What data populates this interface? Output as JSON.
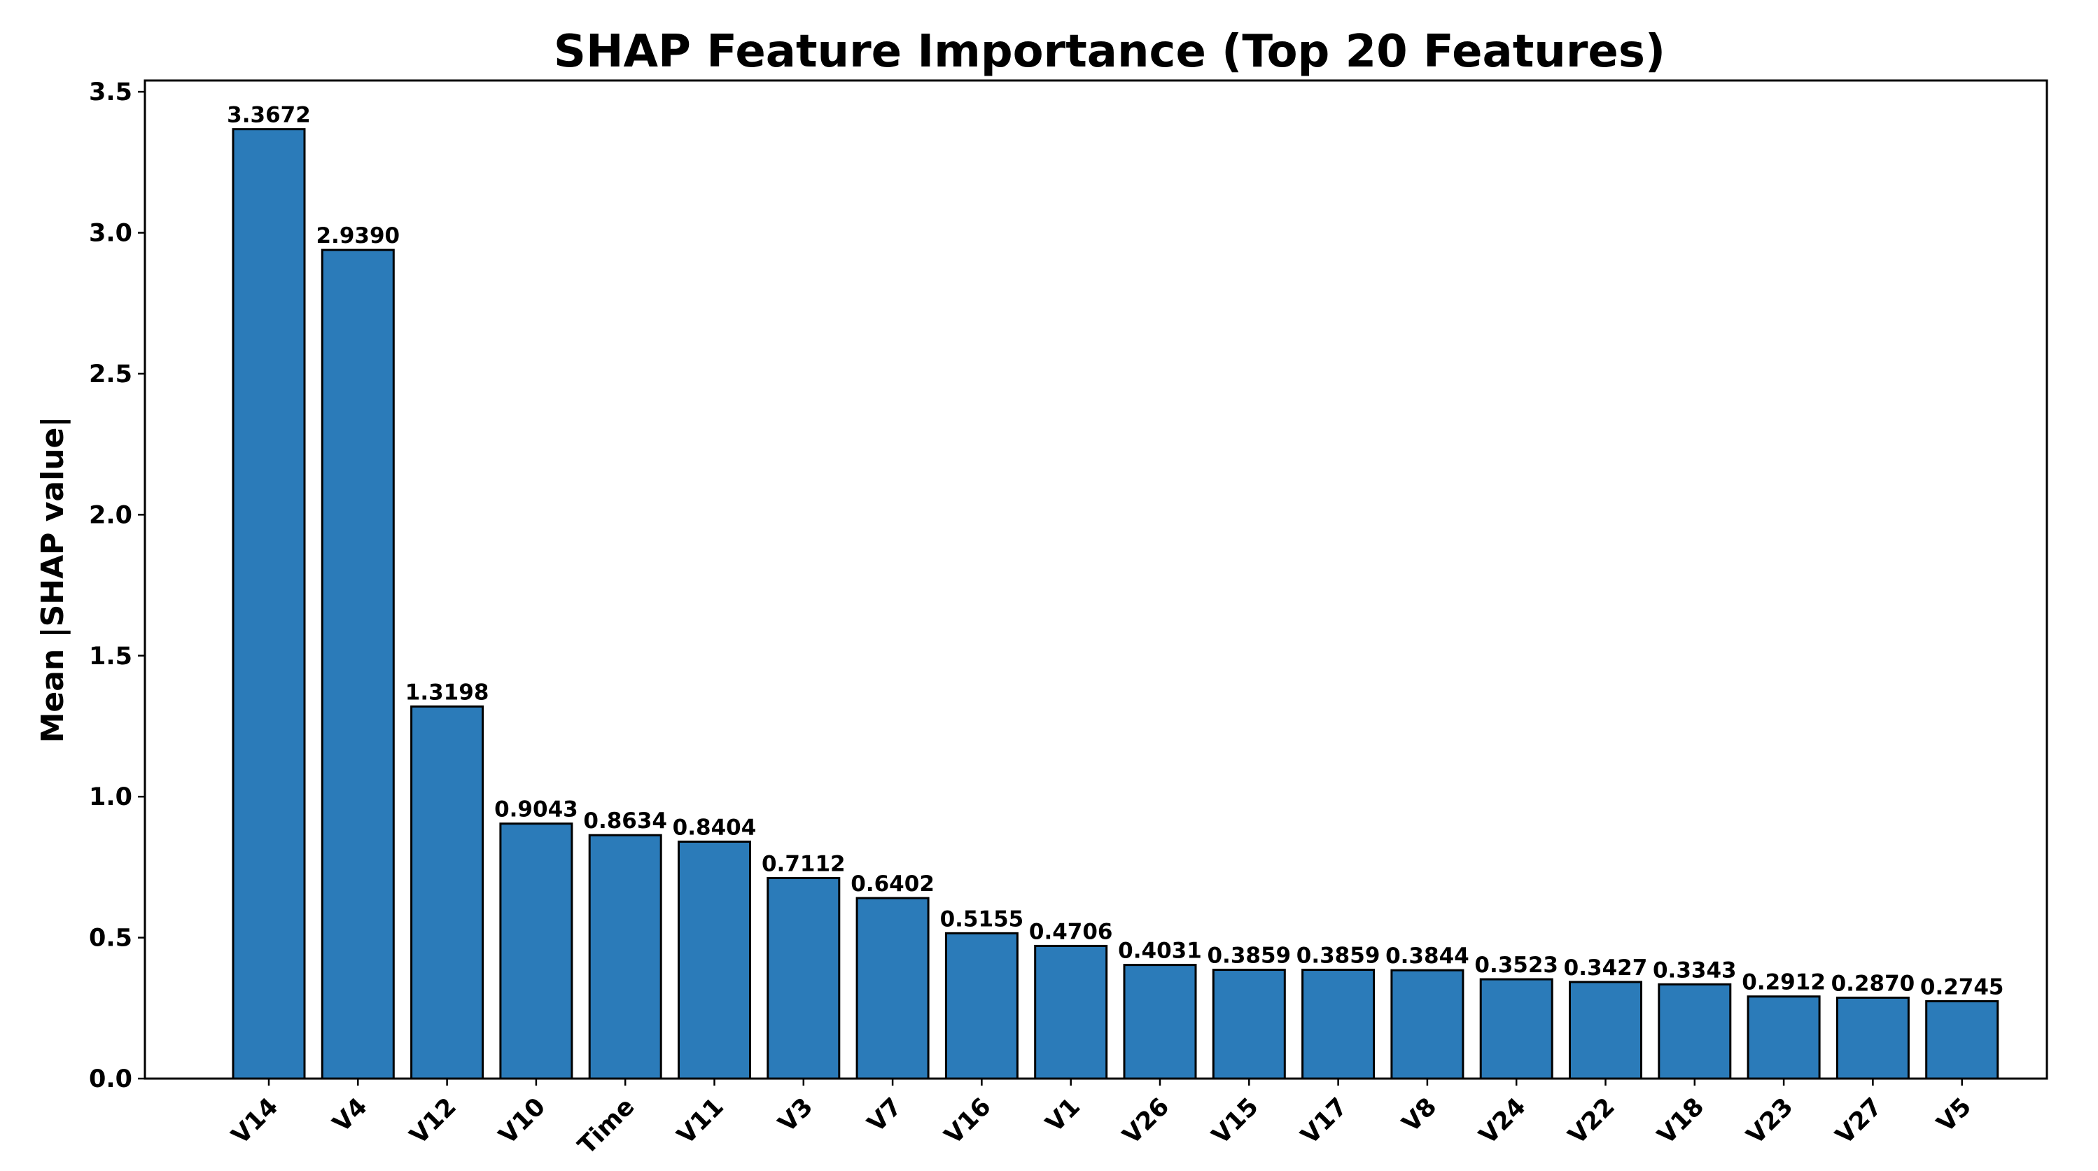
{
  "chart_data": {
    "type": "bar",
    "title": "SHAP Feature Importance (Top 20 Features)",
    "xlabel": "",
    "ylabel": "Mean |SHAP value|",
    "categories": [
      "V14",
      "V4",
      "V12",
      "V10",
      "Time",
      "V11",
      "V3",
      "V7",
      "V16",
      "V1",
      "V26",
      "V15",
      "V17",
      "V8",
      "V24",
      "V22",
      "V18",
      "V23",
      "V27",
      "V5"
    ],
    "values": [
      3.3672,
      2.939,
      1.3198,
      0.9043,
      0.8634,
      0.8404,
      0.7112,
      0.6402,
      0.5155,
      0.4706,
      0.4031,
      0.3859,
      0.3859,
      0.3844,
      0.3523,
      0.3427,
      0.3343,
      0.2912,
      0.287,
      0.2745
    ],
    "value_labels": [
      "3.3672",
      "2.9390",
      "1.3198",
      "0.9043",
      "0.8634",
      "0.8404",
      "0.7112",
      "0.6402",
      "0.5155",
      "0.4706",
      "0.4031",
      "0.3859",
      "0.3859",
      "0.3844",
      "0.3523",
      "0.3427",
      "0.3343",
      "0.2912",
      "0.2870",
      "0.2745"
    ],
    "ylim": [
      0,
      3.54
    ],
    "yticks": [
      "0.0",
      "0.5",
      "1.0",
      "1.5",
      "2.0",
      "2.5",
      "3.0",
      "3.5"
    ],
    "grid": false,
    "bar_color": "#2b7bb9",
    "edge_color": "#000000"
  }
}
